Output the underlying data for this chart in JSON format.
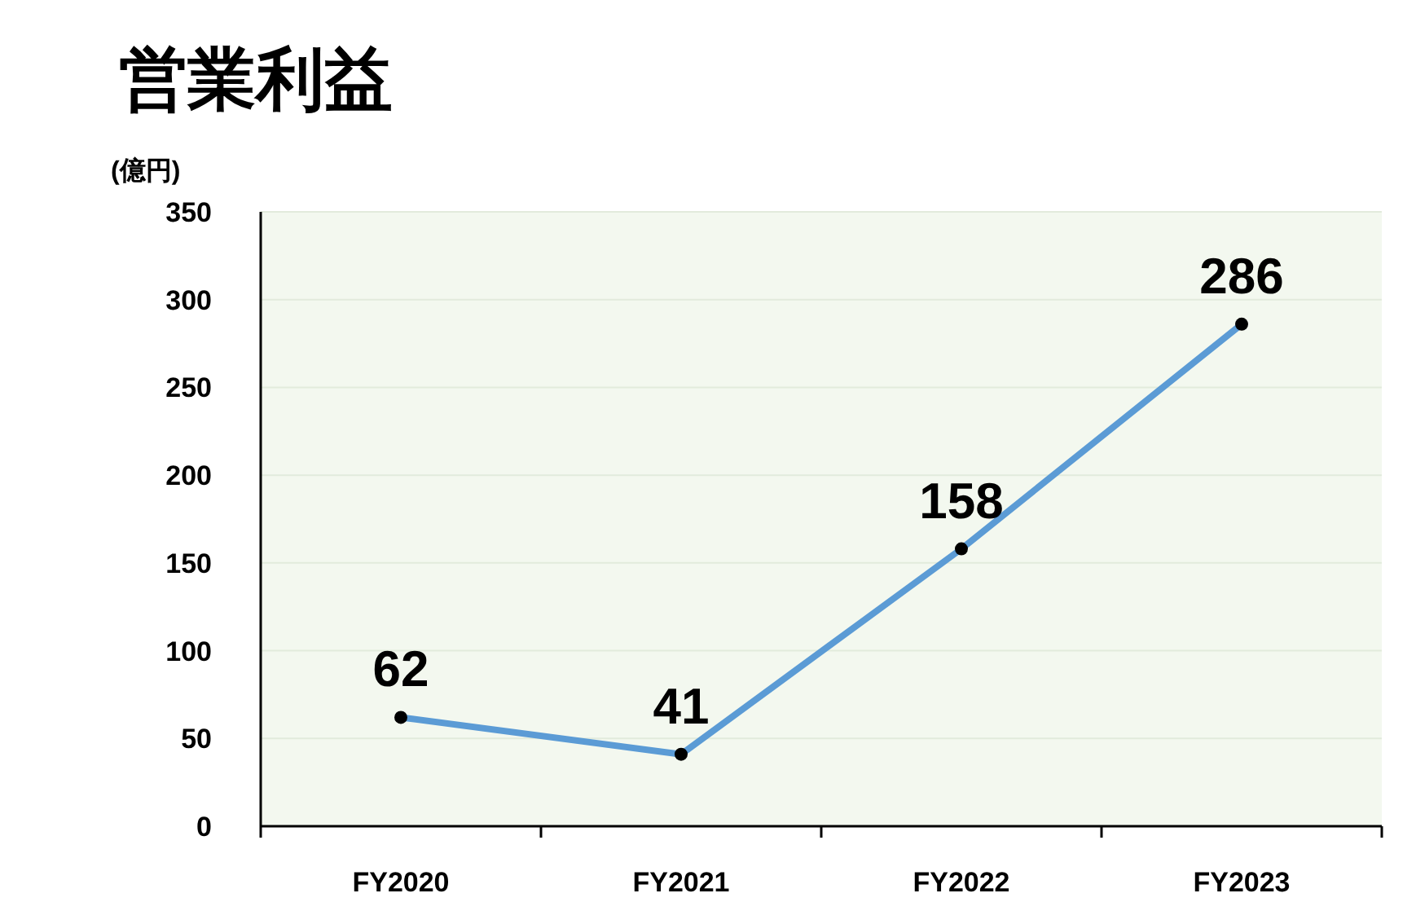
{
  "chart_data": {
    "type": "line",
    "title": "営業利益",
    "ylabel": "(億円)",
    "categories": [
      "FY2020",
      "FY2021",
      "FY2022",
      "FY2023"
    ],
    "series": [
      {
        "color": "#5b9bd5",
        "values": [
          62,
          41,
          158,
          286
        ]
      }
    ],
    "ylim": [
      0,
      350
    ],
    "yticks": [
      0,
      50,
      100,
      150,
      200,
      250,
      300,
      350
    ],
    "grid": "y",
    "marker": "circle",
    "data_labels": true
  }
}
